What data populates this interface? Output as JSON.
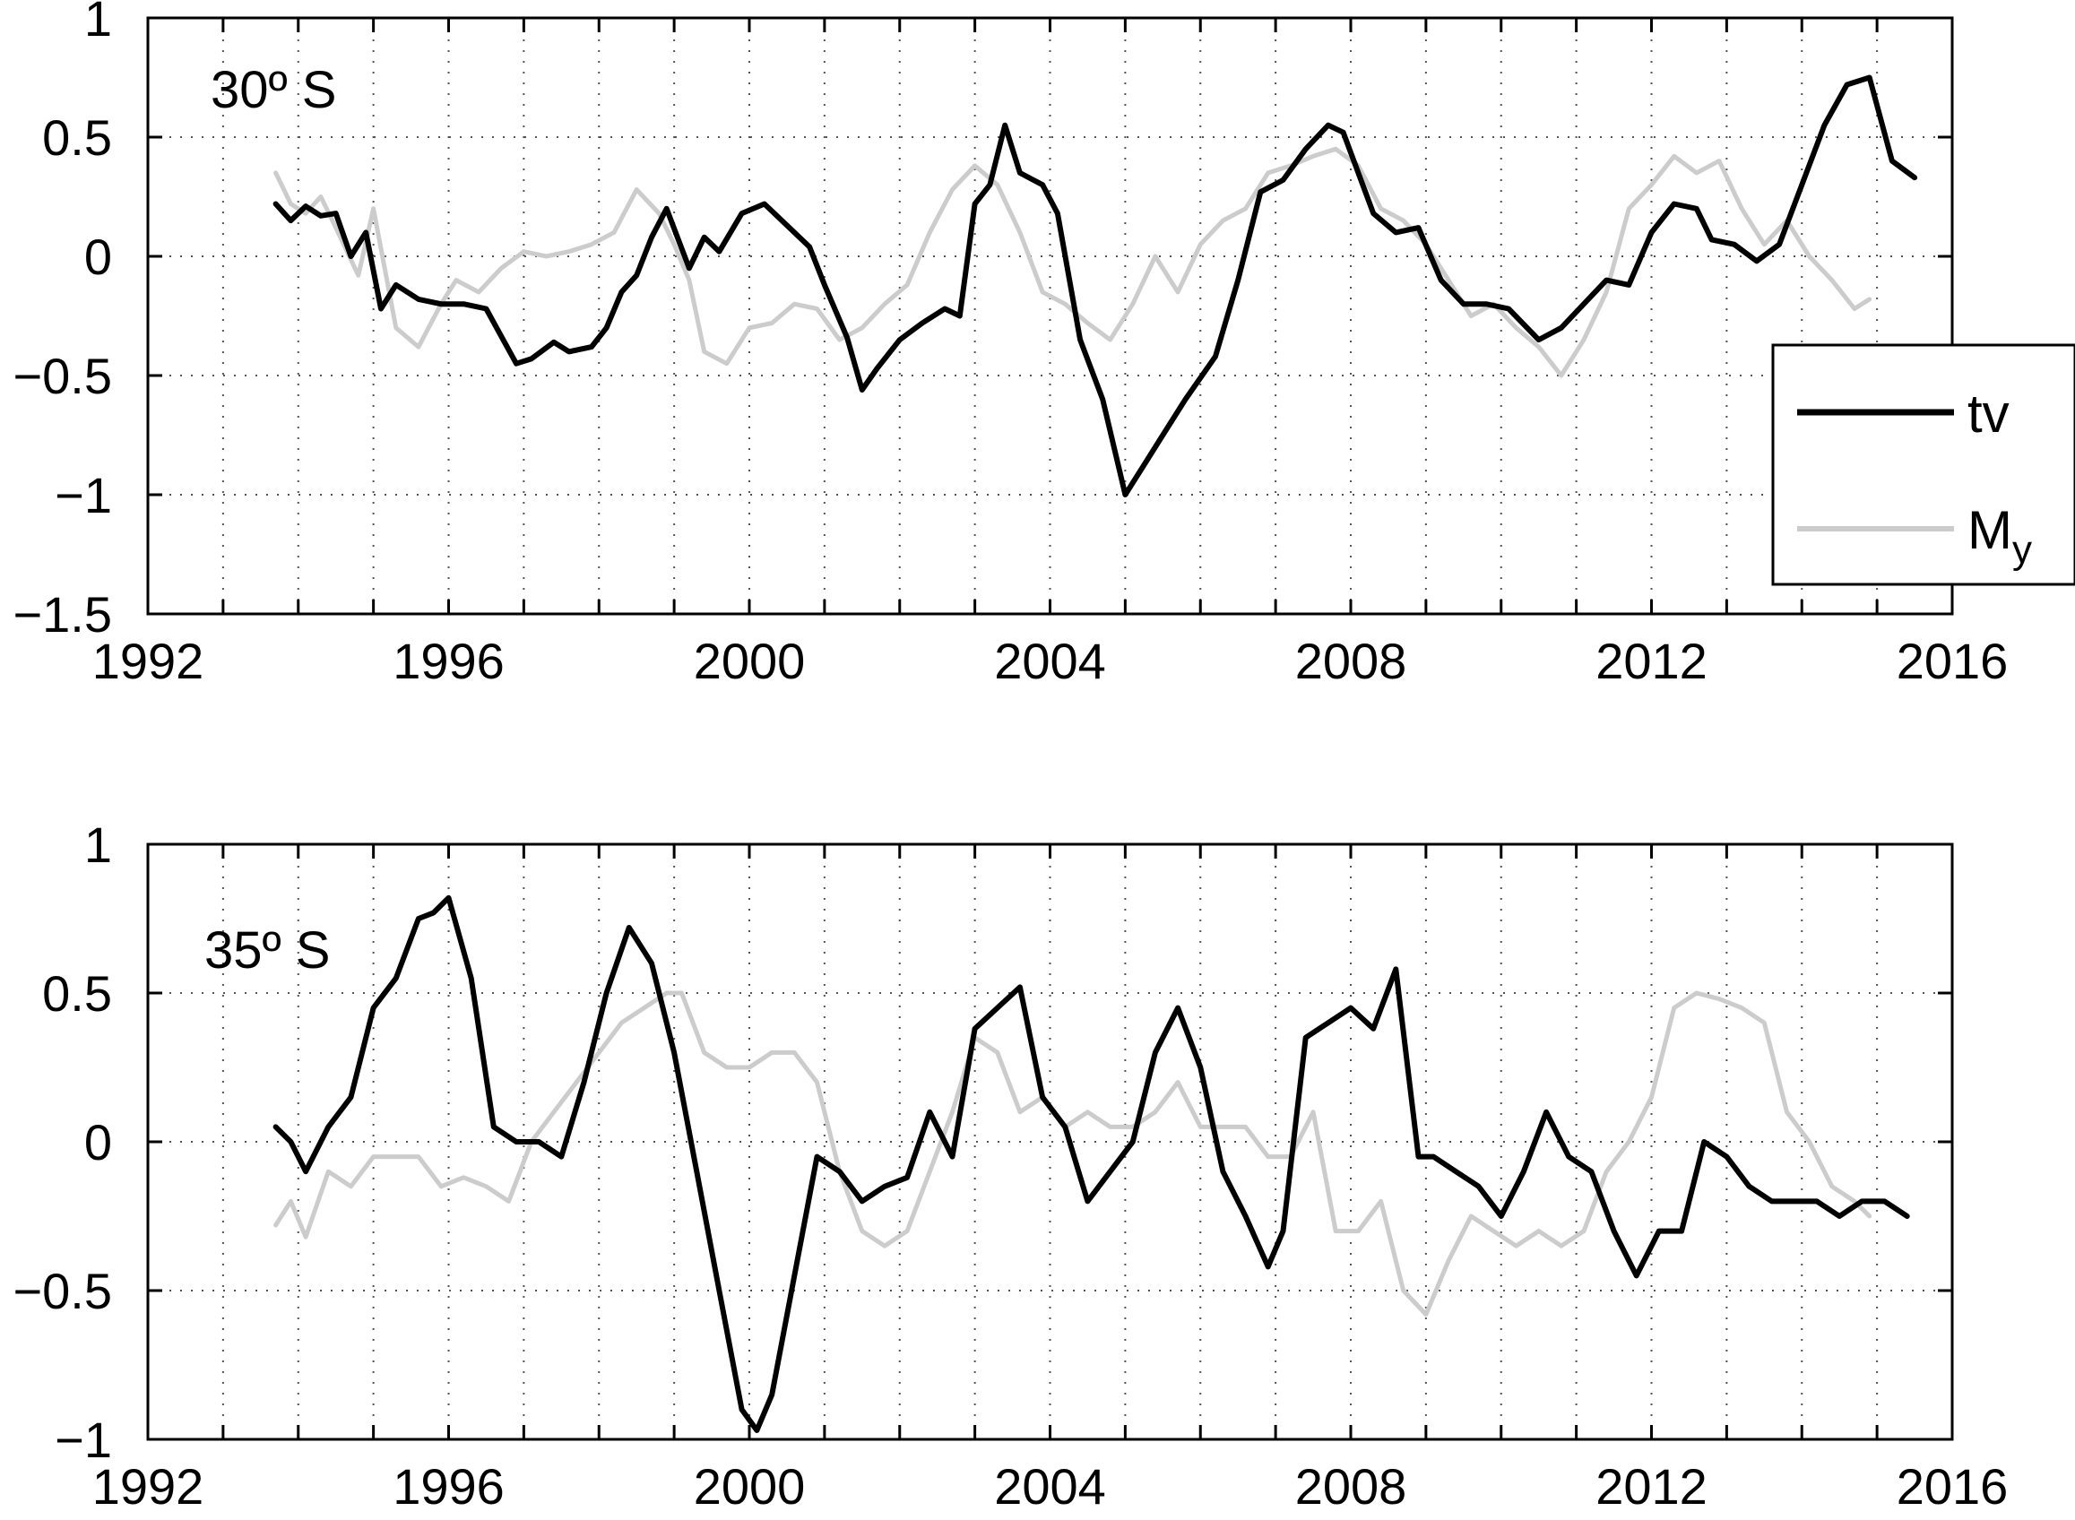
{
  "chart_data": [
    {
      "type": "line",
      "panel_label": "30º S",
      "xlim": [
        1992,
        2016
      ],
      "ylim": [
        -1.5,
        1
      ],
      "xticks": [
        1992,
        1996,
        2000,
        2004,
        2008,
        2012,
        2016
      ],
      "xtick_labels": [
        "1992",
        "1996",
        "2000",
        "2004",
        "2008",
        "2012",
        "2016"
      ],
      "yticks": [
        1,
        0.5,
        0,
        -0.5,
        -1,
        -1.5
      ],
      "ytick_labels": [
        "1",
        "0.5",
        "0",
        "−0.5",
        "−1",
        "−1.5"
      ],
      "grid": true,
      "legend": {
        "placement": "right",
        "entries": [
          {
            "label": "tv",
            "color": "#000000"
          },
          {
            "label": "M",
            "subscript": "y",
            "color": "#cccccc"
          }
        ]
      },
      "series": [
        {
          "name": "tv",
          "color": "#000000",
          "x": [
            1993.7,
            1993.9,
            1994.1,
            1994.3,
            1994.5,
            1994.7,
            1994.9,
            1995.1,
            1995.3,
            1995.6,
            1995.9,
            1996.2,
            1996.5,
            1996.9,
            1997.1,
            1997.4,
            1997.6,
            1997.9,
            1998.1,
            1998.3,
            1998.5,
            1998.7,
            1998.9,
            1999.2,
            1999.4,
            1999.6,
            1999.9,
            2000.2,
            2000.5,
            2000.8,
            2001.0,
            2001.3,
            2001.5,
            2001.7,
            2002.0,
            2002.3,
            2002.6,
            2002.8,
            2003.0,
            2003.2,
            2003.4,
            2003.6,
            2003.9,
            2004.1,
            2004.4,
            2004.7,
            2005.0,
            2005.2,
            2005.5,
            2005.8,
            2006.2,
            2006.5,
            2006.8,
            2007.1,
            2007.4,
            2007.7,
            2007.9,
            2008.3,
            2008.6,
            2008.9,
            2009.2,
            2009.5,
            2009.8,
            2010.1,
            2010.5,
            2010.8,
            2011.1,
            2011.4,
            2011.7,
            2012.0,
            2012.3,
            2012.6,
            2012.8,
            2013.1,
            2013.4,
            2013.7,
            2014.0,
            2014.3,
            2014.6,
            2014.9,
            2015.2,
            2015.5
          ],
          "y": [
            0.22,
            0.15,
            0.21,
            0.17,
            0.18,
            0.0,
            0.1,
            -0.22,
            -0.12,
            -0.18,
            -0.2,
            -0.2,
            -0.22,
            -0.45,
            -0.43,
            -0.36,
            -0.4,
            -0.38,
            -0.3,
            -0.15,
            -0.08,
            0.08,
            0.2,
            -0.05,
            0.08,
            0.02,
            0.18,
            0.22,
            0.13,
            0.04,
            -0.12,
            -0.34,
            -0.56,
            -0.47,
            -0.35,
            -0.28,
            -0.22,
            -0.25,
            0.22,
            0.3,
            0.55,
            0.35,
            0.3,
            0.18,
            -0.35,
            -0.6,
            -1.0,
            -0.9,
            -0.75,
            -0.6,
            -0.42,
            -0.1,
            0.27,
            0.32,
            0.45,
            0.55,
            0.52,
            0.18,
            0.1,
            0.12,
            -0.1,
            -0.2,
            -0.2,
            -0.22,
            -0.35,
            -0.3,
            -0.2,
            -0.1,
            -0.12,
            0.1,
            0.22,
            0.2,
            0.07,
            0.05,
            -0.02,
            0.05,
            0.3,
            0.55,
            0.72,
            0.75,
            0.4,
            0.33
          ]
        },
        {
          "name": "Mᵧ",
          "color": "#cccccc",
          "x": [
            1993.7,
            1993.9,
            1994.1,
            1994.3,
            1994.5,
            1994.8,
            1995.0,
            1995.3,
            1995.6,
            1995.9,
            1996.1,
            1996.4,
            1996.7,
            1997.0,
            1997.3,
            1997.6,
            1997.9,
            1998.2,
            1998.5,
            1998.8,
            1999.0,
            1999.2,
            1999.4,
            1999.7,
            2000.0,
            2000.3,
            2000.6,
            2000.9,
            2001.2,
            2001.5,
            2001.8,
            2002.1,
            2002.4,
            2002.7,
            2003.0,
            2003.3,
            2003.6,
            2003.9,
            2004.2,
            2004.5,
            2004.8,
            2005.1,
            2005.4,
            2005.7,
            2006.0,
            2006.3,
            2006.6,
            2006.9,
            2007.2,
            2007.5,
            2007.8,
            2008.1,
            2008.4,
            2008.7,
            2009.0,
            2009.3,
            2009.6,
            2009.9,
            2010.2,
            2010.5,
            2010.8,
            2011.1,
            2011.4,
            2011.7,
            2012.0,
            2012.3,
            2012.6,
            2012.9,
            2013.2,
            2013.5,
            2013.8,
            2014.1,
            2014.4,
            2014.7,
            2014.9
          ],
          "y": [
            0.35,
            0.22,
            0.18,
            0.25,
            0.12,
            -0.08,
            0.2,
            -0.3,
            -0.38,
            -0.2,
            -0.1,
            -0.15,
            -0.05,
            0.02,
            0.0,
            0.02,
            0.05,
            0.1,
            0.28,
            0.18,
            0.05,
            -0.1,
            -0.4,
            -0.45,
            -0.3,
            -0.28,
            -0.2,
            -0.22,
            -0.35,
            -0.3,
            -0.2,
            -0.12,
            0.1,
            0.28,
            0.38,
            0.3,
            0.1,
            -0.15,
            -0.2,
            -0.28,
            -0.35,
            -0.2,
            0.0,
            -0.15,
            0.05,
            0.15,
            0.2,
            0.35,
            0.38,
            0.42,
            0.45,
            0.38,
            0.2,
            0.15,
            0.05,
            -0.1,
            -0.25,
            -0.2,
            -0.3,
            -0.38,
            -0.5,
            -0.35,
            -0.15,
            0.2,
            0.3,
            0.42,
            0.35,
            0.4,
            0.2,
            0.05,
            0.15,
            0.0,
            -0.1,
            -0.22,
            -0.18
          ]
        }
      ]
    },
    {
      "type": "line",
      "panel_label": "35º S",
      "xlim": [
        1992,
        2016
      ],
      "ylim": [
        -1,
        1
      ],
      "xticks": [
        1992,
        1996,
        2000,
        2004,
        2008,
        2012,
        2016
      ],
      "xtick_labels": [
        "1992",
        "1996",
        "2000",
        "2004",
        "2008",
        "2012",
        "2016"
      ],
      "yticks": [
        1,
        0.5,
        0,
        -0.5,
        -1
      ],
      "ytick_labels": [
        "1",
        "0.5",
        "0",
        "−0.5",
        "−1"
      ],
      "grid": true,
      "series": [
        {
          "name": "tv",
          "color": "#000000",
          "x": [
            1993.7,
            1993.9,
            1994.1,
            1994.4,
            1994.7,
            1995.0,
            1995.3,
            1995.6,
            1995.8,
            1996.0,
            1996.3,
            1996.6,
            1996.9,
            1997.2,
            1997.5,
            1997.8,
            1998.1,
            1998.4,
            1998.7,
            1999.0,
            1999.3,
            1999.6,
            1999.9,
            2000.1,
            2000.3,
            2000.6,
            2000.9,
            2001.2,
            2001.5,
            2001.8,
            2002.1,
            2002.4,
            2002.7,
            2003.0,
            2003.3,
            2003.6,
            2003.9,
            2004.2,
            2004.5,
            2004.8,
            2005.1,
            2005.4,
            2005.7,
            2006.0,
            2006.3,
            2006.6,
            2006.9,
            2007.1,
            2007.4,
            2007.7,
            2008.0,
            2008.3,
            2008.6,
            2008.9,
            2009.1,
            2009.4,
            2009.7,
            2010.0,
            2010.3,
            2010.6,
            2010.9,
            2011.2,
            2011.5,
            2011.8,
            2012.1,
            2012.4,
            2012.7,
            2013.0,
            2013.3,
            2013.6,
            2013.9,
            2014.2,
            2014.5,
            2014.8,
            2015.1,
            2015.4
          ],
          "y": [
            0.05,
            0.0,
            -0.1,
            0.05,
            0.15,
            0.45,
            0.55,
            0.75,
            0.77,
            0.82,
            0.55,
            0.05,
            0.0,
            0.0,
            -0.05,
            0.2,
            0.5,
            0.72,
            0.6,
            0.3,
            -0.1,
            -0.5,
            -0.9,
            -0.97,
            -0.85,
            -0.45,
            -0.05,
            -0.1,
            -0.2,
            -0.15,
            -0.12,
            0.1,
            -0.05,
            0.38,
            0.45,
            0.52,
            0.15,
            0.05,
            -0.2,
            -0.1,
            0.0,
            0.3,
            0.45,
            0.25,
            -0.1,
            -0.25,
            -0.42,
            -0.3,
            0.35,
            0.4,
            0.45,
            0.38,
            0.58,
            -0.05,
            -0.05,
            -0.1,
            -0.15,
            -0.25,
            -0.1,
            0.1,
            -0.05,
            -0.1,
            -0.3,
            -0.45,
            -0.3,
            -0.3,
            0.0,
            -0.05,
            -0.15,
            -0.2,
            -0.2,
            -0.2,
            -0.25,
            -0.2,
            -0.2,
            -0.25
          ]
        },
        {
          "name": "Mᵧ",
          "color": "#cccccc",
          "x": [
            1993.7,
            1993.9,
            1994.1,
            1994.4,
            1994.7,
            1995.0,
            1995.3,
            1995.6,
            1995.9,
            1996.2,
            1996.5,
            1996.8,
            1997.1,
            1997.4,
            1997.7,
            1998.0,
            1998.3,
            1998.6,
            1998.9,
            1999.1,
            1999.4,
            1999.7,
            2000.0,
            2000.3,
            2000.6,
            2000.9,
            2001.2,
            2001.5,
            2001.8,
            2002.1,
            2002.4,
            2002.7,
            2003.0,
            2003.3,
            2003.6,
            2003.9,
            2004.2,
            2004.5,
            2004.8,
            2005.1,
            2005.4,
            2005.7,
            2006.0,
            2006.3,
            2006.6,
            2006.9,
            2007.2,
            2007.5,
            2007.8,
            2008.1,
            2008.4,
            2008.7,
            2009.0,
            2009.3,
            2009.6,
            2009.9,
            2010.2,
            2010.5,
            2010.8,
            2011.1,
            2011.4,
            2011.7,
            2012.0,
            2012.3,
            2012.6,
            2012.9,
            2013.2,
            2013.5,
            2013.8,
            2014.1,
            2014.4,
            2014.7,
            2014.9
          ],
          "y": [
            -0.28,
            -0.2,
            -0.32,
            -0.1,
            -0.15,
            -0.05,
            -0.05,
            -0.05,
            -0.15,
            -0.12,
            -0.15,
            -0.2,
            0.0,
            0.1,
            0.2,
            0.3,
            0.4,
            0.45,
            0.5,
            0.5,
            0.3,
            0.25,
            0.25,
            0.3,
            0.3,
            0.2,
            -0.1,
            -0.3,
            -0.35,
            -0.3,
            -0.1,
            0.1,
            0.35,
            0.3,
            0.1,
            0.15,
            0.05,
            0.1,
            0.05,
            0.05,
            0.1,
            0.2,
            0.05,
            0.05,
            0.05,
            -0.05,
            -0.05,
            0.1,
            -0.3,
            -0.3,
            -0.2,
            -0.5,
            -0.58,
            -0.4,
            -0.25,
            -0.3,
            -0.35,
            -0.3,
            -0.35,
            -0.3,
            -0.1,
            0.0,
            0.15,
            0.45,
            0.5,
            0.48,
            0.45,
            0.4,
            0.1,
            0.0,
            -0.15,
            -0.2,
            -0.25
          ]
        }
      ]
    }
  ]
}
